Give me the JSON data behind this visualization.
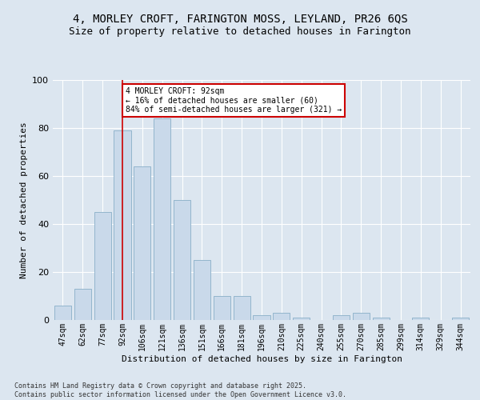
{
  "title": "4, MORLEY CROFT, FARINGTON MOSS, LEYLAND, PR26 6QS",
  "subtitle": "Size of property relative to detached houses in Farington",
  "xlabel": "Distribution of detached houses by size in Farington",
  "ylabel": "Number of detached properties",
  "categories": [
    "47sqm",
    "62sqm",
    "77sqm",
    "92sqm",
    "106sqm",
    "121sqm",
    "136sqm",
    "151sqm",
    "166sqm",
    "181sqm",
    "196sqm",
    "210sqm",
    "225sqm",
    "240sqm",
    "255sqm",
    "270sqm",
    "285sqm",
    "299sqm",
    "314sqm",
    "329sqm",
    "344sqm"
  ],
  "values": [
    6,
    13,
    45,
    79,
    64,
    84,
    50,
    25,
    10,
    10,
    2,
    3,
    1,
    0,
    2,
    3,
    1,
    0,
    1,
    0,
    1
  ],
  "bar_color": "#c9d9ea",
  "bar_edge_color": "#88aec8",
  "vline_x": 3,
  "vline_color": "#cc0000",
  "annotation_text": "4 MORLEY CROFT: 92sqm\n← 16% of detached houses are smaller (60)\n84% of semi-detached houses are larger (321) →",
  "annotation_box_color": "#ffffff",
  "annotation_box_edge": "#cc0000",
  "ylim": [
    0,
    100
  ],
  "fig_bg_color": "#dce6f0",
  "plot_bg_color": "#dce6f0",
  "footer": "Contains HM Land Registry data © Crown copyright and database right 2025.\nContains public sector information licensed under the Open Government Licence v3.0.",
  "title_fontsize": 10,
  "subtitle_fontsize": 9,
  "tick_fontsize": 7,
  "ylabel_fontsize": 8,
  "xlabel_fontsize": 8,
  "footer_fontsize": 6
}
